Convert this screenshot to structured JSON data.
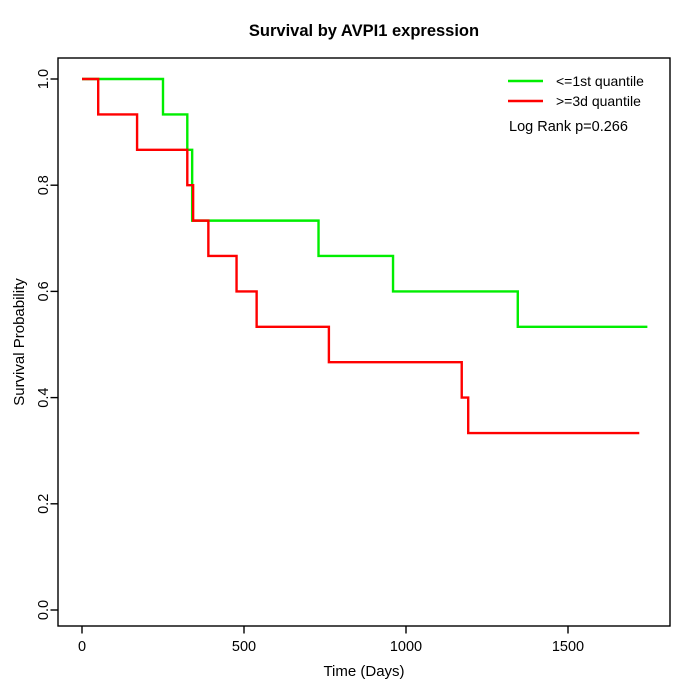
{
  "chart_data": {
    "type": "line",
    "subtype": "kaplan-meier-step",
    "title": "Survival by AVPI1 expression",
    "xlabel": "Time (Days)",
    "ylabel": "Survival Probability",
    "xlim": [
      0,
      1815
    ],
    "ylim": [
      0.0,
      1.0
    ],
    "grid": false,
    "x_ticks": [
      "0",
      "500",
      "1000",
      "1500"
    ],
    "y_ticks": [
      "0.0",
      "0.2",
      "0.4",
      "0.6",
      "0.8",
      "1.0"
    ],
    "legend_position": "top-right",
    "series": [
      {
        "name": "<=1st quantile",
        "color": "#00ee00",
        "steps": [
          [
            0,
            1.0
          ],
          [
            250,
            0.9333
          ],
          [
            325,
            0.8667
          ],
          [
            340,
            0.7333
          ],
          [
            730,
            0.6667
          ],
          [
            960,
            0.6
          ],
          [
            1345,
            0.5333
          ]
        ],
        "end": 1745
      },
      {
        "name": ">=3d quantile",
        "color": "#ff0000",
        "steps": [
          [
            0,
            1.0
          ],
          [
            50,
            0.9333
          ],
          [
            170,
            0.8667
          ],
          [
            325,
            0.8
          ],
          [
            343,
            0.7333
          ],
          [
            390,
            0.6667
          ],
          [
            477,
            0.6
          ],
          [
            539,
            0.5333
          ],
          [
            762,
            0.4667
          ],
          [
            1172,
            0.4
          ],
          [
            1192,
            0.3333
          ]
        ],
        "end": 1720
      }
    ],
    "log_rank_note": "Log Rank p=0.266",
    "axis_color": "#000000"
  }
}
